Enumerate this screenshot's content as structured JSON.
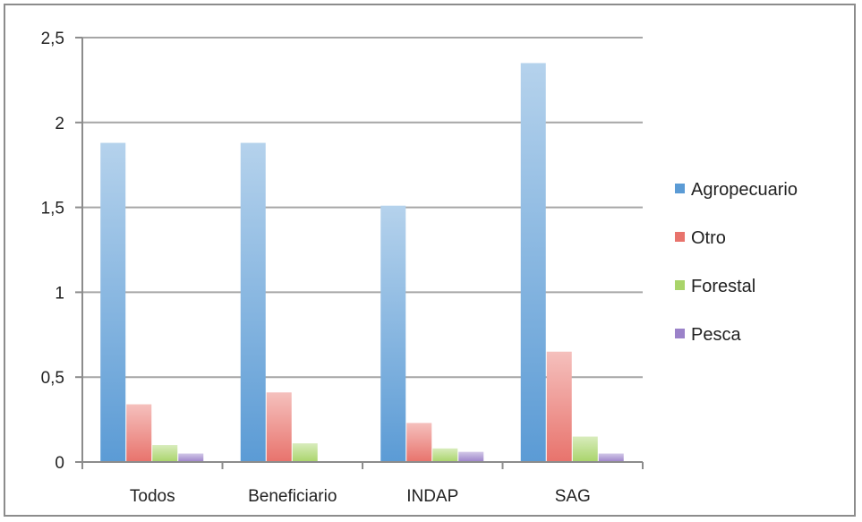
{
  "chart_data": {
    "type": "bar",
    "title": "",
    "xlabel": "",
    "ylabel": "",
    "ylim": [
      0,
      2.5
    ],
    "yticks": [
      "0",
      "0,5",
      "1",
      "1,5",
      "2",
      "2,5"
    ],
    "ytick_values": [
      0,
      0.5,
      1,
      1.5,
      2,
      2.5
    ],
    "categories": [
      "Todos",
      "Beneficiario",
      "INDAP",
      "SAG"
    ],
    "grid": true,
    "legend_position": "right",
    "series": [
      {
        "name": "Agropecuario",
        "values": [
          1.88,
          1.88,
          1.51,
          2.35
        ],
        "color": "#5b9bd5"
      },
      {
        "name": "Otro",
        "values": [
          0.34,
          0.41,
          0.23,
          0.65
        ],
        "color": "#e8736c"
      },
      {
        "name": "Forestal",
        "values": [
          0.1,
          0.11,
          0.08,
          0.15
        ],
        "color": "#a9d46a"
      },
      {
        "name": "Pesca",
        "values": [
          0.05,
          0.0,
          0.06,
          0.05
        ],
        "color": "#9b82c9"
      }
    ]
  }
}
